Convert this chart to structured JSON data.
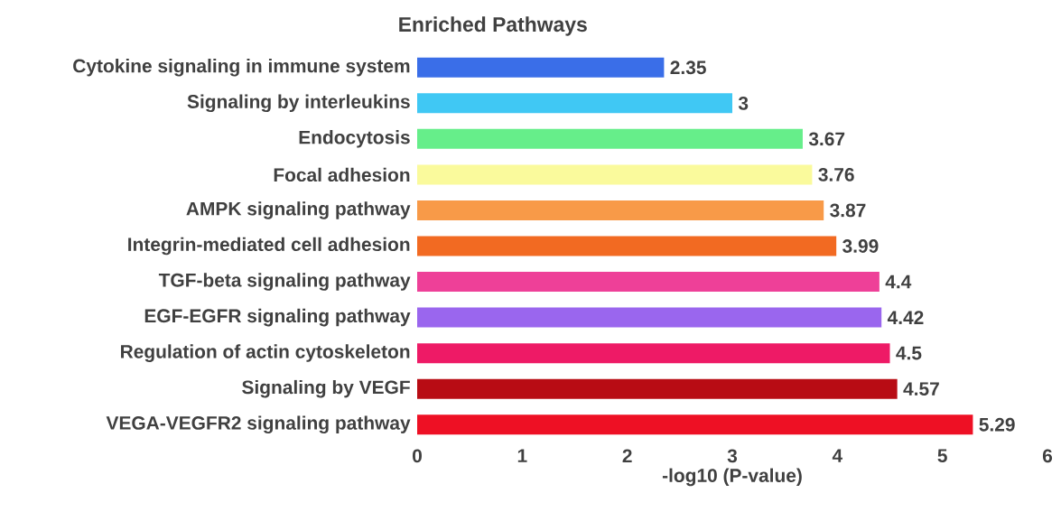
{
  "chart_data": {
    "type": "bar",
    "orientation": "horizontal",
    "title": "Enriched Pathways",
    "xlabel": "-log10 (P-value)",
    "categories": [
      "Cytokine signaling in immune system",
      "Signaling by interleukins",
      "Endocytosis",
      "Focal adhesion",
      "AMPK  signaling pathway",
      "Integrin-mediated cell adhesion",
      "TGF-beta signaling pathway",
      "EGF-EGFR signaling pathway",
      "Regulation of actin cytoskeleton",
      "Signaling by VEGF",
      "VEGA-VEGFR2 signaling pathway"
    ],
    "values": [
      2.35,
      3,
      3.67,
      3.76,
      3.87,
      3.99,
      4.4,
      4.42,
      4.5,
      4.57,
      5.29
    ],
    "colors": [
      "#3a6ee8",
      "#40c8f4",
      "#66ee8a",
      "#fafa9c",
      "#f89a48",
      "#f26a22",
      "#ee4098",
      "#9a66ee",
      "#ee1a66",
      "#b80c14",
      "#ee1024"
    ],
    "xlim": [
      0,
      6
    ],
    "xticks": [
      0,
      1,
      2,
      3,
      4,
      5,
      6
    ],
    "data_labels": true
  }
}
